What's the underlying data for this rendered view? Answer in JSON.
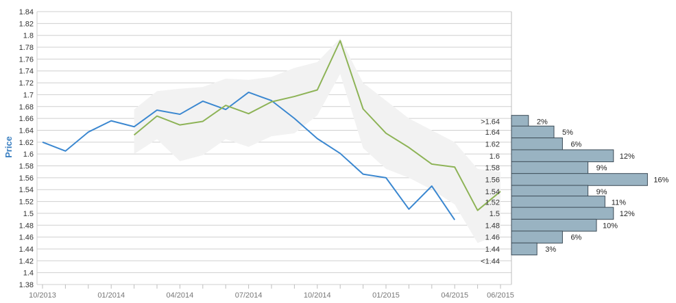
{
  "chart_data": {
    "type": "line",
    "ylabel": "Price",
    "ylim": [
      1.38,
      1.84
    ],
    "y_ticks": [
      "1.38",
      "1.4",
      "1.42",
      "1.44",
      "1.46",
      "1.48",
      "1.5",
      "1.52",
      "1.54",
      "1.56",
      "1.58",
      "1.6",
      "1.62",
      "1.64",
      "1.66",
      "1.68",
      "1.7",
      "1.72",
      "1.74",
      "1.76",
      "1.78",
      "1.8",
      "1.82",
      "1.84"
    ],
    "x_tick_labels": [
      "10/2013",
      "01/2014",
      "04/2014",
      "07/2014",
      "10/2014",
      "01/2015",
      "04/2015",
      "06/2015"
    ],
    "grid": true,
    "series": [
      {
        "color": "#3a87d0",
        "x": [
          "10/2013",
          "11/2013",
          "12/2013",
          "01/2014",
          "02/2014",
          "03/2014",
          "04/2014",
          "05/2014",
          "06/2014",
          "07/2014",
          "08/2014",
          "09/2014",
          "10/2014",
          "11/2014",
          "12/2014",
          "01/2015",
          "02/2015",
          "03/2015",
          "04/2015"
        ],
        "values": [
          1.62,
          1.605,
          1.637,
          1.656,
          1.646,
          1.674,
          1.667,
          1.689,
          1.675,
          1.704,
          1.69,
          1.66,
          1.626,
          1.601,
          1.566,
          1.56,
          1.507,
          1.546,
          1.489
        ]
      },
      {
        "color": "#8db356",
        "x": [
          "02/2014",
          "03/2014",
          "04/2014",
          "05/2014",
          "06/2014",
          "07/2014",
          "08/2014",
          "09/2014",
          "10/2014",
          "11/2014",
          "12/2014",
          "01/2015",
          "02/2015",
          "03/2015",
          "04/2015",
          "05/2015",
          "06/2015"
        ],
        "values": [
          1.632,
          1.664,
          1.649,
          1.655,
          1.682,
          1.668,
          1.688,
          1.697,
          1.708,
          1.791,
          1.676,
          1.635,
          1.611,
          1.583,
          1.578,
          1.505,
          1.537
        ]
      }
    ],
    "band": {
      "color": "#f2f2f2",
      "x": [
        "02/2014",
        "03/2014",
        "04/2014",
        "05/2014",
        "06/2014",
        "07/2014",
        "08/2014",
        "09/2014",
        "10/2014",
        "11/2014",
        "12/2014",
        "01/2015",
        "02/2015",
        "03/2015",
        "04/2015",
        "05/2015",
        "06/2015"
      ],
      "upper": [
        1.675,
        1.706,
        1.71,
        1.713,
        1.727,
        1.725,
        1.73,
        1.745,
        1.755,
        1.795,
        1.72,
        1.69,
        1.66,
        1.64,
        1.62,
        1.575,
        1.57
      ],
      "lower": [
        1.6,
        1.625,
        1.588,
        1.598,
        1.625,
        1.612,
        1.63,
        1.635,
        1.665,
        1.735,
        1.61,
        1.575,
        1.56,
        1.54,
        1.515,
        1.45,
        1.465
      ]
    },
    "distribution": {
      "type": "bar",
      "orientation": "horizontal",
      "bar_color": "#99b3c2",
      "categories": [
        ">1.64",
        "1.64",
        "1.62",
        "1.6",
        "1.58",
        "1.56",
        "1.54",
        "1.52",
        "1.5",
        "1.48",
        "1.46",
        "1.44",
        "<1.44"
      ],
      "values": [
        2,
        5,
        6,
        12,
        9,
        16,
        9,
        11,
        12,
        10,
        6,
        3,
        0
      ],
      "labels": [
        "2%",
        "5%",
        "6%",
        "12%",
        "9%",
        "16%",
        "9%",
        "11%",
        "12%",
        "10%",
        "6%",
        "3%",
        ""
      ],
      "category_y": [
        1.655,
        1.637,
        1.617,
        1.597,
        1.577,
        1.557,
        1.537,
        1.519,
        1.5,
        1.48,
        1.46,
        1.44,
        1.42
      ]
    }
  }
}
